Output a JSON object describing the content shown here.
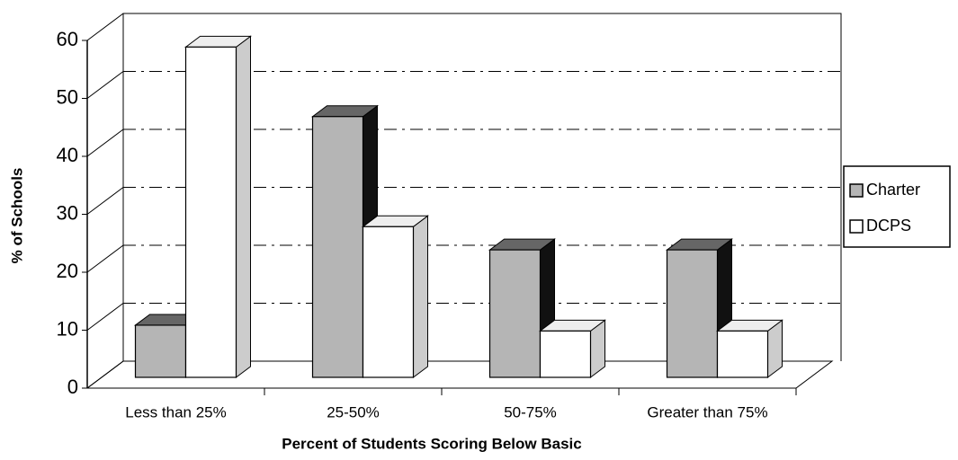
{
  "chart_data": {
    "type": "bar3d",
    "x_label": "Percent of Students Scoring Below Basic",
    "y_label": "% of Schools",
    "categories": [
      "Less than 25%",
      "25-50%",
      "50-75%",
      "Greater than 75%"
    ],
    "series": [
      {
        "name": "Charter",
        "color": "#b5b5b5",
        "values": [
          9,
          45,
          22,
          22
        ]
      },
      {
        "name": "DCPS",
        "color": "#ffffff",
        "values": [
          57,
          26,
          8,
          8
        ]
      }
    ],
    "ylim": [
      0,
      60
    ],
    "yticks": [
      0,
      10,
      20,
      30,
      40,
      50,
      60
    ],
    "grid": true,
    "legend": "right"
  }
}
